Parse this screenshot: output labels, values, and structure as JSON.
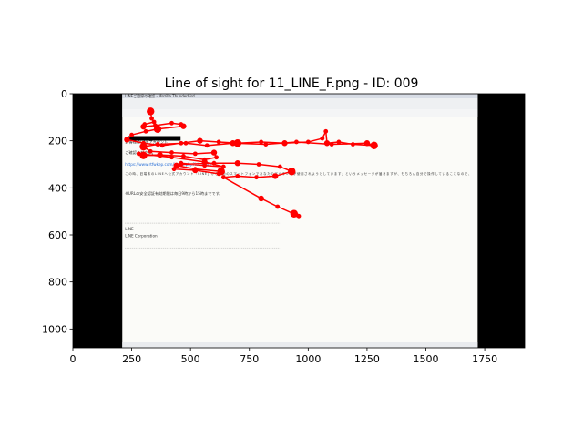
{
  "chart_data": {
    "type": "scatter",
    "title": "Line of sight for 11_LINE_F.png - ID: 009",
    "xlabel": "",
    "ylabel": "",
    "xlim": [
      0,
      1920
    ],
    "ylim": [
      1080,
      0
    ],
    "y_inverted": true,
    "x_ticks": [
      "0",
      "250",
      "500",
      "750",
      "1000",
      "1250",
      "1500",
      "1750"
    ],
    "y_ticks": [
      "0",
      "200",
      "400",
      "600",
      "800",
      "1000"
    ],
    "grid": false,
    "background_image": {
      "x_range": [
        0,
        1920
      ],
      "y_range": [
        0,
        1080
      ],
      "content_x_range": [
        210,
        1720
      ],
      "content_y_range": [
        0,
        1080
      ],
      "window_title": "LINEご登録の確認 - Mozilla Thunderbird",
      "body_lines": [
        "お客様のLINEアカウント",
        "ご確認ください。",
        "https://www.rtfwkep.com/index.php?id=9345",
        "この時、旧端末のLINEへ公式アカウント「LINE」から「他のスマートフォンであなたのアカウントが使用されようとしています」というメッセージが届きますが、もちろん自分で操作していることなので、",
        "※URLの安全認証有効期限は毎日9時から15時までです。",
        "LINE",
        "LINE Corporation"
      ]
    },
    "series": [
      {
        "color": "#ff0000",
        "points": [
          [
            330,
            75
          ],
          [
            335,
            105
          ],
          [
            345,
            120
          ],
          [
            305,
            130
          ],
          [
            300,
            140
          ],
          [
            350,
            135
          ],
          [
            420,
            125
          ],
          [
            460,
            130
          ],
          [
            470,
            138
          ],
          [
            360,
            150
          ],
          [
            310,
            160
          ],
          [
            250,
            175
          ],
          [
            230,
            195
          ],
          [
            300,
            210
          ],
          [
            380,
            220
          ],
          [
            460,
            210
          ],
          [
            540,
            200
          ],
          [
            620,
            205
          ],
          [
            700,
            210
          ],
          [
            800,
            205
          ],
          [
            900,
            210
          ],
          [
            1000,
            205
          ],
          [
            1060,
            190
          ],
          [
            1075,
            160
          ],
          [
            1080,
            210
          ],
          [
            1130,
            205
          ],
          [
            1190,
            215
          ],
          [
            1280,
            220
          ],
          [
            1250,
            210
          ],
          [
            1100,
            215
          ],
          [
            950,
            205
          ],
          [
            820,
            215
          ],
          [
            680,
            210
          ],
          [
            570,
            220
          ],
          [
            480,
            210
          ],
          [
            360,
            215
          ],
          [
            300,
            225
          ],
          [
            330,
            245
          ],
          [
            420,
            250
          ],
          [
            520,
            255
          ],
          [
            600,
            250
          ],
          [
            610,
            270
          ],
          [
            560,
            280
          ],
          [
            470,
            265
          ],
          [
            370,
            260
          ],
          [
            300,
            262
          ],
          [
            280,
            255
          ],
          [
            420,
            270
          ],
          [
            560,
            290
          ],
          [
            640,
            310
          ],
          [
            560,
            305
          ],
          [
            460,
            295
          ],
          [
            440,
            305
          ],
          [
            520,
            320
          ],
          [
            630,
            330
          ],
          [
            620,
            340
          ],
          [
            520,
            325
          ],
          [
            430,
            320
          ],
          [
            460,
            300
          ],
          [
            600,
            295
          ],
          [
            700,
            295
          ],
          [
            790,
            300
          ],
          [
            880,
            310
          ],
          [
            930,
            330
          ],
          [
            860,
            350
          ],
          [
            780,
            355
          ],
          [
            700,
            350
          ],
          [
            640,
            355
          ],
          [
            800,
            445
          ],
          [
            870,
            480
          ],
          [
            950,
            515
          ],
          [
            960,
            520
          ],
          [
            940,
            510
          ]
        ]
      }
    ]
  }
}
